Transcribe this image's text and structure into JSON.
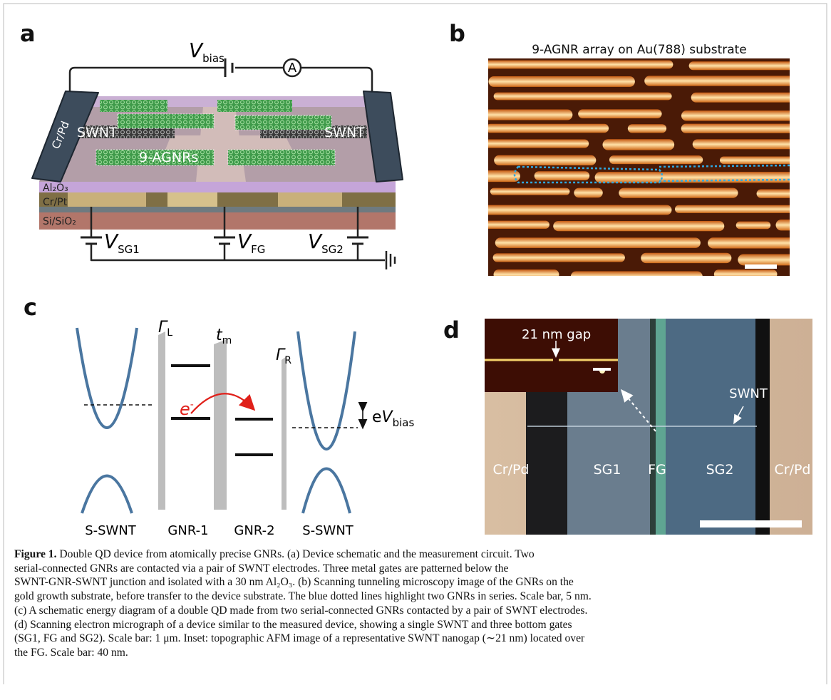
{
  "panel_a": {
    "label": "a",
    "v_bias": {
      "symbol": "V",
      "sub": "bias"
    },
    "ammeter": "A",
    "electrode_left": "Cr/Pd",
    "swnt_left": "SWNT",
    "swnt_right": "SWNT",
    "gnr": "9-AGNRs",
    "layers": [
      "Al₂O₃",
      "Cr/Pt",
      "Si/SiO₂"
    ],
    "gates": [
      {
        "symbol": "V",
        "sub": "SG1"
      },
      {
        "symbol": "V",
        "sub": "FG"
      },
      {
        "symbol": "V",
        "sub": "SG2"
      }
    ]
  },
  "panel_b": {
    "label": "b",
    "title": "9-AGNR array on Au(788) substrate"
  },
  "panel_c": {
    "label": "c",
    "gamma_l": {
      "symbol": "Γ",
      "sub": "L"
    },
    "t_m": {
      "symbol": "t",
      "sub": "m"
    },
    "gamma_r": {
      "symbol": "Γ",
      "sub": "R"
    },
    "electron": {
      "symbol": "e",
      "sup": "-"
    },
    "ev_bias": {
      "prefix": "e",
      "symbol": "V",
      "sub": "bias"
    },
    "labels": [
      "S-SWNT",
      "GNR-1",
      "GNR-2",
      "S-SWNT"
    ]
  },
  "panel_d": {
    "label": "d",
    "inset_label": "21 nm gap",
    "swnt": "SWNT",
    "regions": [
      "Cr/Pd",
      "SG1",
      "FG",
      "SG2",
      "Cr/Pd"
    ]
  },
  "caption": {
    "label": "Figure 1.",
    "lines": [
      "Double QD device from atomically precise GNRs. (a) Device schematic and the measurement circuit. Two",
      "serial-connected GNRs are contacted via a pair of SWNT electrodes. Three metal gates are patterned below the",
      "SWNT-GNR-SWNT junction and isolated with a 30 nm Al₂O₃. (b) Scanning tunneling microscopy image of the GNRs on the",
      "gold growth substrate, before transfer to the device substrate. The blue dotted lines highlight two GNRs in series. Scale bar, 5 nm.",
      "(c) A schematic energy diagram of a double QD made from two serial-connected GNRs contacted by a pair of SWNT electrodes.",
      "(d) Scanning electron micrograph of a device similar to the measured device, showing a single SWNT and three bottom gates",
      "(SG1, FG and SG2). Scale bar: 1 μm. Inset: topographic AFM image of a representative SWNT nanogap (∼21 nm) located over",
      "the FG. Scale bar: 40 nm."
    ]
  }
}
